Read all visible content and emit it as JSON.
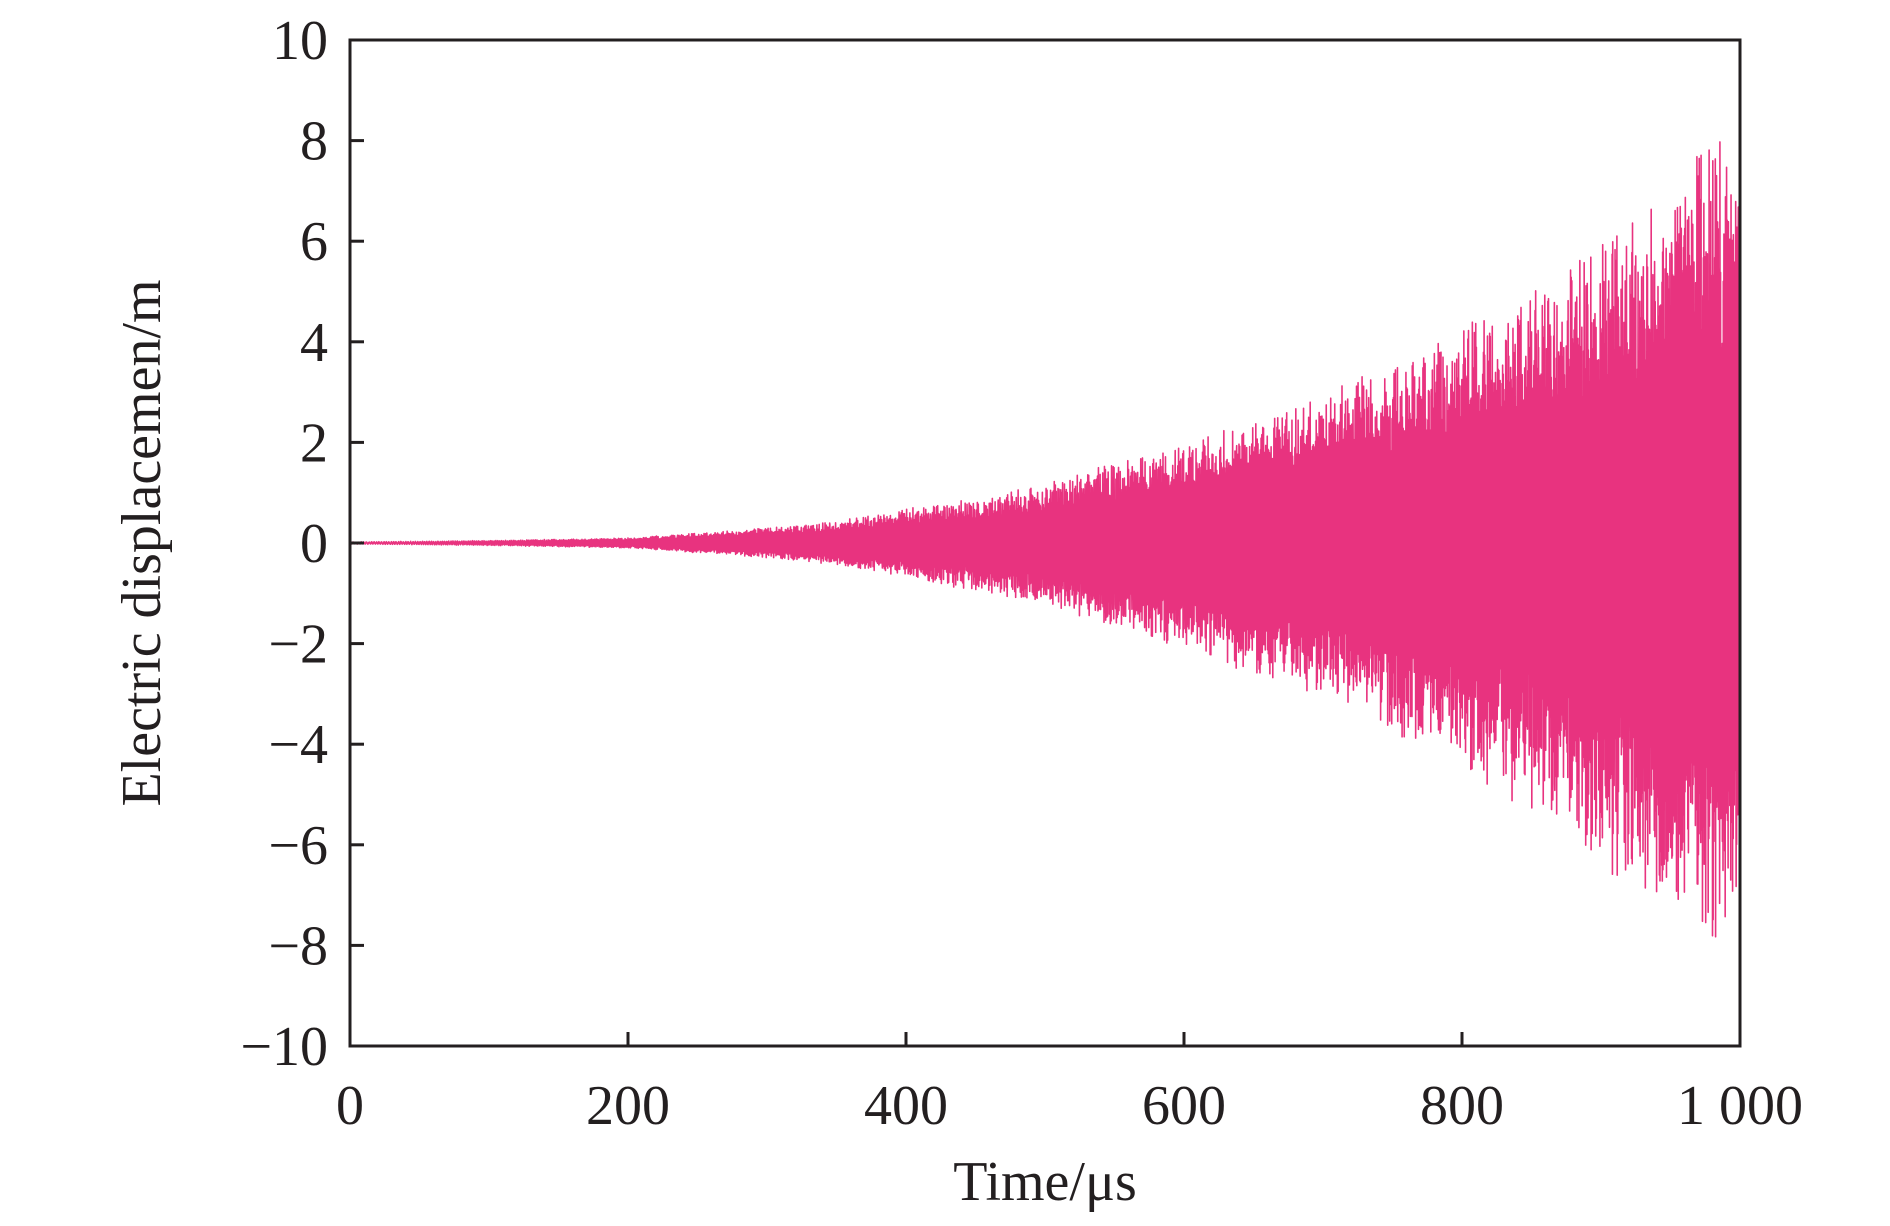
{
  "chart_data": {
    "type": "line",
    "title": "",
    "xlabel": "Time/μs",
    "ylabel": "Electric displacemen/m",
    "xlim": [
      0,
      1000
    ],
    "ylim": [
      -10,
      10
    ],
    "x_ticks": [
      0,
      200,
      400,
      600,
      800,
      1000
    ],
    "x_tick_labels": [
      "0",
      "200",
      "400",
      "600",
      "800",
      "1 000"
    ],
    "y_ticks": [
      10,
      8,
      6,
      4,
      2,
      0,
      -2,
      -4,
      -6,
      -8,
      -10
    ],
    "y_tick_labels": [
      "10",
      "8",
      "6",
      "4",
      "2",
      "0",
      "−2",
      "−4",
      "−6",
      "−8",
      "−10"
    ],
    "grid": false,
    "legend": "none",
    "series": [
      {
        "color": "#e8337f",
        "description_points": {
          "x": [
            0,
            100,
            200,
            250,
            300,
            350,
            400,
            450,
            500,
            550,
            600,
            650,
            700,
            750,
            800,
            850,
            900,
            950,
            980,
            1000
          ],
          "envelope_upper": [
            0.02,
            0.05,
            0.1,
            0.2,
            0.3,
            0.45,
            0.7,
            0.9,
            1.2,
            1.6,
            2.0,
            2.5,
            3.0,
            3.6,
            4.3,
            5.0,
            6.0,
            7.0,
            8.1,
            8.1
          ],
          "envelope_lower": [
            -0.02,
            -0.05,
            -0.1,
            -0.2,
            -0.3,
            -0.45,
            -0.7,
            -1.0,
            -1.2,
            -1.7,
            -2.2,
            -2.6,
            -3.1,
            -3.8,
            -4.5,
            -5.5,
            -6.5,
            -7.5,
            -8.2,
            -8.0
          ]
        }
      }
    ]
  }
}
